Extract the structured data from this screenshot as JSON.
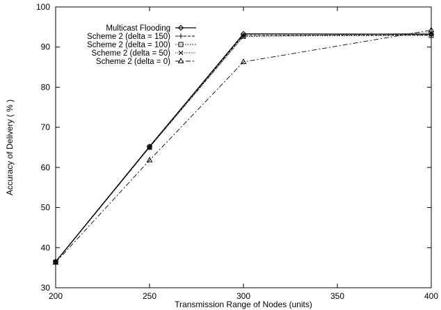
{
  "chart_data": {
    "type": "line",
    "title": "",
    "xlabel": "Transmission Range of Nodes  (units)",
    "ylabel": "Accuracy of Delivery ( % )",
    "xlim": [
      200,
      400
    ],
    "ylim": [
      30,
      100
    ],
    "xticks": [
      200,
      250,
      300,
      350,
      400
    ],
    "yticks": [
      30,
      40,
      50,
      60,
      70,
      80,
      90,
      100
    ],
    "grid": false,
    "legend_position": "top-left",
    "x": [
      200,
      250,
      300,
      400
    ],
    "series": [
      {
        "name": "Multicast Flooding",
        "marker": "diamond",
        "dash": "solid",
        "values": [
          36.5,
          65.2,
          93.3,
          93.2
        ]
      },
      {
        "name": "Scheme 2 (delta = 150)",
        "marker": "plus",
        "dash": "dash-short",
        "values": [
          36.5,
          65.1,
          93.0,
          93.0
        ]
      },
      {
        "name": "Scheme 2 (delta = 100)",
        "marker": "square",
        "dash": "dot",
        "values": [
          36.4,
          65.0,
          92.7,
          92.9
        ]
      },
      {
        "name": "Scheme 2 (delta = 50)",
        "marker": "cross",
        "dash": "dot-fine",
        "values": [
          36.4,
          65.0,
          92.6,
          93.5
        ]
      },
      {
        "name": "Scheme 2 (delta = 0)",
        "marker": "triangle",
        "dash": "dash-dot",
        "values": [
          36.3,
          61.8,
          86.3,
          94.2
        ]
      }
    ]
  }
}
